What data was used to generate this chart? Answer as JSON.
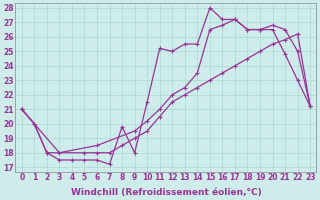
{
  "xlabel": "Windchill (Refroidissement éolien,°C)",
  "xlim_min": -0.5,
  "xlim_max": 23.5,
  "ylim_min": 16.7,
  "ylim_max": 28.3,
  "xticks": [
    0,
    1,
    2,
    3,
    4,
    5,
    6,
    7,
    8,
    9,
    10,
    11,
    12,
    13,
    14,
    15,
    16,
    17,
    18,
    19,
    20,
    21,
    22,
    23
  ],
  "yticks": [
    17,
    18,
    19,
    20,
    21,
    22,
    23,
    24,
    25,
    26,
    27,
    28
  ],
  "bg_color": "#cdecea",
  "line_color": "#993399",
  "line1_x": [
    0,
    1,
    2,
    3,
    4,
    5,
    6,
    7,
    8,
    9,
    10,
    11,
    12,
    13,
    14,
    15,
    16,
    17,
    18,
    19,
    20,
    21,
    22,
    23
  ],
  "line1_y": [
    21.0,
    20.0,
    18.0,
    17.5,
    17.5,
    17.5,
    17.5,
    17.2,
    19.8,
    18.0,
    21.5,
    25.2,
    25.0,
    25.5,
    25.5,
    28.0,
    27.2,
    27.2,
    26.5,
    26.5,
    26.5,
    24.8,
    23.0,
    21.2
  ],
  "line1_has_marker": [
    1,
    1,
    1,
    1,
    1,
    1,
    1,
    1,
    1,
    1,
    1,
    1,
    1,
    1,
    1,
    1,
    1,
    1,
    1,
    1,
    1,
    1,
    1,
    1
  ],
  "line2_x": [
    0,
    3,
    6,
    9,
    10,
    11,
    12,
    13,
    14,
    15,
    16,
    17,
    18,
    19,
    20,
    21,
    22,
    23
  ],
  "line2_y": [
    21.0,
    18.0,
    18.5,
    19.5,
    20.2,
    21.0,
    22.0,
    22.5,
    23.5,
    26.5,
    26.8,
    27.2,
    26.5,
    26.5,
    26.8,
    26.5,
    25.0,
    21.2
  ],
  "line3_x": [
    0,
    1,
    2,
    5,
    6,
    7,
    8,
    9,
    10,
    11,
    12,
    13,
    14,
    15,
    16,
    17,
    18,
    19,
    20,
    21,
    22,
    23
  ],
  "line3_y": [
    21.0,
    20.0,
    18.0,
    18.0,
    18.0,
    18.0,
    18.5,
    19.0,
    19.5,
    20.5,
    21.5,
    22.0,
    22.5,
    23.0,
    23.5,
    24.0,
    24.5,
    25.0,
    25.5,
    25.8,
    26.2,
    21.2
  ],
  "grid_color": "#a8d8d4",
  "tick_fontsize": 5.5,
  "label_fontsize": 6.5
}
